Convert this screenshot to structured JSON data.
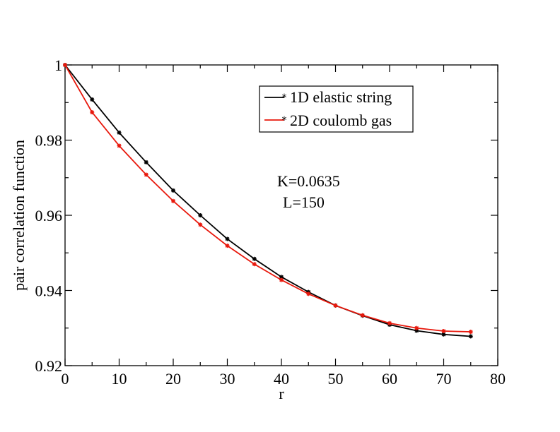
{
  "chart_data": {
    "type": "line",
    "title": "",
    "xlabel": "r",
    "ylabel": "pair correlation function",
    "xlim": [
      0,
      80
    ],
    "ylim": [
      0.92,
      1.0
    ],
    "x_ticks": [
      0,
      10,
      20,
      30,
      40,
      50,
      60,
      70,
      80
    ],
    "x_tick_labels": [
      "0",
      "10",
      "20",
      "30",
      "40",
      "50",
      "60",
      "70",
      "80"
    ],
    "y_ticks": [
      0.92,
      0.94,
      0.96,
      0.98,
      1.0
    ],
    "y_tick_labels": [
      "0.92",
      "0.94",
      "0.96",
      "0.98",
      "1"
    ],
    "grid": false,
    "legend_position": "top-right",
    "x": [
      0,
      5,
      10,
      15,
      20,
      25,
      30,
      35,
      40,
      45,
      50,
      55,
      60,
      65,
      70,
      75
    ],
    "series": [
      {
        "name": "1D elastic string",
        "color": "#000000",
        "values": [
          1.0,
          0.9908,
          0.982,
          0.9741,
          0.9666,
          0.96,
          0.9537,
          0.9484,
          0.9436,
          0.9396,
          0.936,
          0.9333,
          0.9309,
          0.9293,
          0.9283,
          0.9278
        ]
      },
      {
        "name": "2D coulomb gas",
        "color": "#e8180c",
        "values": [
          1.0,
          0.9874,
          0.9785,
          0.9708,
          0.9638,
          0.9575,
          0.9519,
          0.947,
          0.9428,
          0.9391,
          0.936,
          0.9334,
          0.9313,
          0.93,
          0.9292,
          0.929
        ]
      }
    ],
    "annotations": [
      "K=0.0635",
      "L=150"
    ]
  }
}
